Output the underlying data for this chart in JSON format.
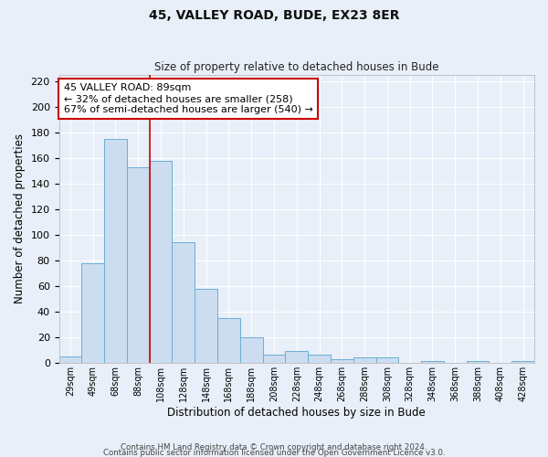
{
  "title": "45, VALLEY ROAD, BUDE, EX23 8ER",
  "subtitle": "Size of property relative to detached houses in Bude",
  "xlabel": "Distribution of detached houses by size in Bude",
  "ylabel": "Number of detached properties",
  "bar_labels": [
    "29sqm",
    "49sqm",
    "68sqm",
    "88sqm",
    "108sqm",
    "128sqm",
    "148sqm",
    "168sqm",
    "188sqm",
    "208sqm",
    "228sqm",
    "248sqm",
    "268sqm",
    "288sqm",
    "308sqm",
    "328sqm",
    "348sqm",
    "368sqm",
    "388sqm",
    "408sqm",
    "428sqm"
  ],
  "bar_values": [
    5,
    78,
    175,
    153,
    158,
    94,
    58,
    35,
    20,
    6,
    9,
    6,
    3,
    4,
    4,
    0,
    1,
    0,
    1,
    0,
    1
  ],
  "bar_color": "#ccddf0",
  "bar_edge_color": "#6baed6",
  "marker_bar_index": 3,
  "marker_label": "45 VALLEY ROAD: 89sqm",
  "annotation_line1": "← 32% of detached houses are smaller (258)",
  "annotation_line2": "67% of semi-detached houses are larger (540) →",
  "marker_color": "#cc0000",
  "ylim_max": 225,
  "ytick_step": 20,
  "footer1": "Contains HM Land Registry data © Crown copyright and database right 2024.",
  "footer2": "Contains public sector information licensed under the Open Government Licence v3.0.",
  "bg_color": "#e8eff8",
  "grid_color": "#ffffff",
  "annotation_box_facecolor": "#ffffff",
  "annotation_box_edgecolor": "#cc0000"
}
